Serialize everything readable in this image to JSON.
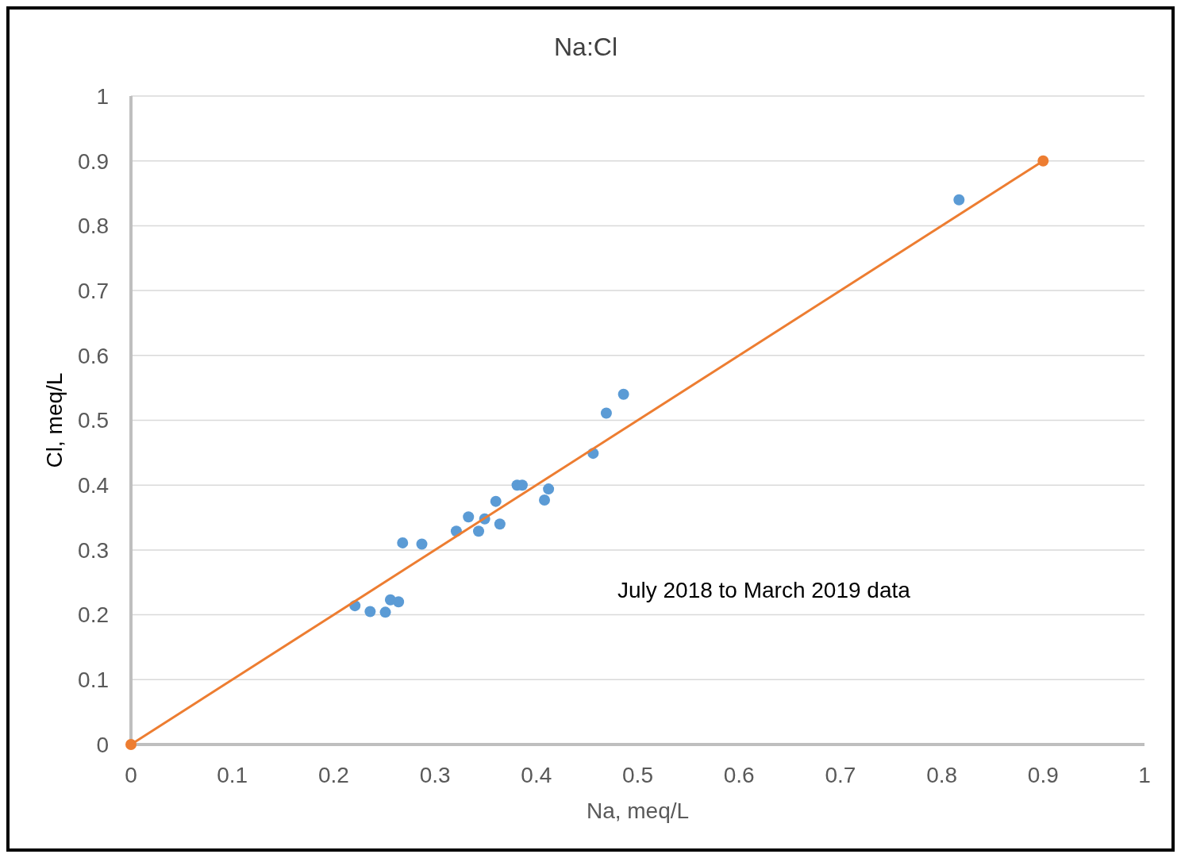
{
  "chart_data": {
    "type": "scatter",
    "title": "Na:Cl",
    "xlabel": "Na, meq/L",
    "ylabel": "Cl, meq/L",
    "annotations": [
      "July 2018 to March 2019 data"
    ],
    "xlim": [
      0,
      1
    ],
    "xticks": [
      0,
      0.1,
      0.2,
      0.3,
      0.4,
      0.5,
      0.6,
      0.7,
      0.8,
      0.9,
      1
    ],
    "ylim": [
      0,
      1
    ],
    "yticks": [
      0,
      0.1,
      0.2,
      0.3,
      0.4,
      0.5,
      0.6,
      0.7,
      0.8,
      0.9,
      1
    ],
    "grid": "y",
    "marker": "circle",
    "series": [
      {
        "color": "#5b9bd5",
        "x": [
          0.221,
          0.236,
          0.251,
          0.256,
          0.264,
          0.268,
          0.287,
          0.321,
          0.333,
          0.343,
          0.349,
          0.36,
          0.364,
          0.381,
          0.386,
          0.408,
          0.412,
          0.456,
          0.469,
          0.486,
          0.817
        ],
        "values": [
          0.214,
          0.205,
          0.204,
          0.223,
          0.22,
          0.311,
          0.309,
          0.329,
          0.351,
          0.329,
          0.348,
          0.375,
          0.34,
          0.4,
          0.4,
          0.377,
          0.394,
          0.449,
          0.511,
          0.54,
          0.84
        ]
      },
      {
        "type": "line",
        "color": "#ed7d31",
        "x": [
          0,
          0.9
        ],
        "values": [
          0,
          0.9
        ]
      }
    ]
  }
}
